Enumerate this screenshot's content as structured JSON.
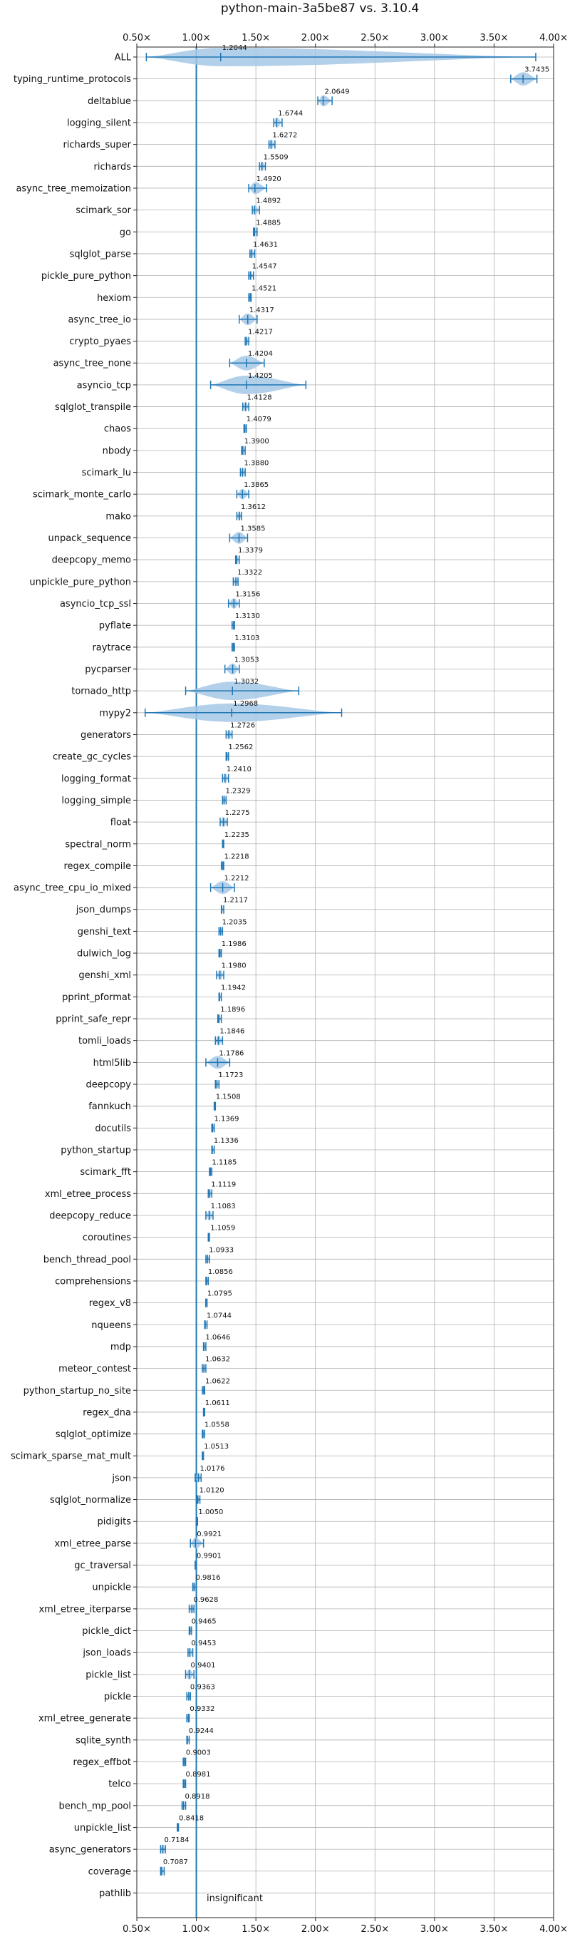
{
  "chart_data": {
    "type": "violin",
    "title": "python-main-3a5be87 vs. 3.10.4",
    "xlabel": "",
    "ylabel": "",
    "xlim": [
      0.5,
      4.0
    ],
    "xticks": [
      0.5,
      1.0,
      1.5,
      2.0,
      2.5,
      3.0,
      3.5,
      4.0
    ],
    "xtick_labels": [
      "0.50×",
      "1.00×",
      "1.50×",
      "2.00×",
      "2.50×",
      "3.00×",
      "3.50×",
      "4.00×"
    ],
    "x_axes": [
      "top",
      "bottom"
    ],
    "grid": true,
    "reference_line": 1.0,
    "color": "#1f77b4",
    "fill_color": "#a6c8e6",
    "annotation": "insignificant",
    "categories": [
      "ALL",
      "typing_runtime_protocols",
      "deltablue",
      "logging_silent",
      "richards_super",
      "richards",
      "async_tree_memoization",
      "scimark_sor",
      "go",
      "sqlglot_parse",
      "pickle_pure_python",
      "hexiom",
      "async_tree_io",
      "crypto_pyaes",
      "async_tree_none",
      "asyncio_tcp",
      "sqlglot_transpile",
      "chaos",
      "nbody",
      "scimark_lu",
      "scimark_monte_carlo",
      "mako",
      "unpack_sequence",
      "deepcopy_memo",
      "unpickle_pure_python",
      "asyncio_tcp_ssl",
      "pyflate",
      "raytrace",
      "pycparser",
      "tornado_http",
      "mypy2",
      "generators",
      "create_gc_cycles",
      "logging_format",
      "logging_simple",
      "float",
      "spectral_norm",
      "regex_compile",
      "async_tree_cpu_io_mixed",
      "json_dumps",
      "genshi_text",
      "dulwich_log",
      "genshi_xml",
      "pprint_pformat",
      "pprint_safe_repr",
      "tomli_loads",
      "html5lib",
      "deepcopy",
      "fannkuch",
      "docutils",
      "python_startup",
      "scimark_fft",
      "xml_etree_process",
      "deepcopy_reduce",
      "coroutines",
      "bench_thread_pool",
      "comprehensions",
      "regex_v8",
      "nqueens",
      "mdp",
      "meteor_contest",
      "python_startup_no_site",
      "regex_dna",
      "sqlglot_optimize",
      "scimark_sparse_mat_mult",
      "json",
      "sqlglot_normalize",
      "pidigits",
      "xml_etree_parse",
      "gc_traversal",
      "unpickle",
      "xml_etree_iterparse",
      "pickle_dict",
      "json_loads",
      "pickle_list",
      "pickle",
      "xml_etree_generate",
      "sqlite_synth",
      "regex_effbot",
      "telco",
      "bench_mp_pool",
      "unpickle_list",
      "async_generators",
      "coverage",
      "pathlib"
    ],
    "medians": [
      1.2044,
      3.7435,
      2.0649,
      1.6744,
      1.6272,
      1.5509,
      1.492,
      1.4892,
      1.4885,
      1.4631,
      1.4547,
      1.4521,
      1.4317,
      1.4217,
      1.4204,
      1.4205,
      1.4128,
      1.4079,
      1.39,
      1.388,
      1.3865,
      1.3612,
      1.3585,
      1.3379,
      1.3322,
      1.3156,
      1.313,
      1.3103,
      1.3053,
      1.3032,
      1.2968,
      1.2726,
      1.2562,
      1.241,
      1.2329,
      1.2275,
      1.2235,
      1.2218,
      1.2212,
      1.2117,
      1.2035,
      1.1986,
      1.198,
      1.1942,
      1.1896,
      1.1846,
      1.1786,
      1.1723,
      1.1508,
      1.1369,
      1.1336,
      1.1185,
      1.1119,
      1.1083,
      1.1059,
      1.0933,
      1.0856,
      1.0795,
      1.0744,
      1.0646,
      1.0632,
      1.0622,
      1.0611,
      1.0558,
      1.0513,
      1.0176,
      1.012,
      1.005,
      0.9921,
      0.9901,
      0.9816,
      0.9628,
      0.9465,
      0.9453,
      0.9401,
      0.9363,
      0.9332,
      0.9244,
      0.9003,
      0.8981,
      0.8918,
      0.8418,
      0.7184,
      0.7087,
      null
    ],
    "value_labels": [
      "1.2044",
      "3.7435",
      "2.0649",
      "1.6744",
      "1.6272",
      "1.5509",
      "1.4920",
      "1.4892",
      "1.4885",
      "1.4631",
      "1.4547",
      "1.4521",
      "1.4317",
      "1.4217",
      "1.4204",
      "1.4205",
      "1.4128",
      "1.4079",
      "1.3900",
      "1.3880",
      "1.3865",
      "1.3612",
      "1.3585",
      "1.3379",
      "1.3322",
      "1.3156",
      "1.3130",
      "1.3103",
      "1.3053",
      "1.3032",
      "1.2968",
      "1.2726",
      "1.2562",
      "1.2410",
      "1.2329",
      "1.2275",
      "1.2235",
      "1.2218",
      "1.2212",
      "1.2117",
      "1.2035",
      "1.1986",
      "1.1980",
      "1.1942",
      "1.1896",
      "1.1846",
      "1.1786",
      "1.1723",
      "1.1508",
      "1.1369",
      "1.1336",
      "1.1185",
      "1.1119",
      "1.1083",
      "1.1059",
      "1.0933",
      "1.0856",
      "1.0795",
      "1.0744",
      "1.0646",
      "1.0632",
      "1.0622",
      "1.0611",
      "1.0558",
      "1.0513",
      "1.0176",
      "1.0120",
      "1.0050",
      "0.9921",
      "0.9901",
      "0.9816",
      "0.9628",
      "0.9465",
      "0.9453",
      "0.9401",
      "0.9363",
      "0.9332",
      "0.9244",
      "0.9003",
      "0.8981",
      "0.8918",
      "0.8418",
      "0.7184",
      "0.7087",
      ""
    ],
    "min": [
      0.58,
      3.64,
      2.02,
      1.65,
      1.61,
      1.53,
      1.44,
      1.47,
      1.48,
      1.45,
      1.44,
      1.44,
      1.36,
      1.41,
      1.28,
      1.12,
      1.39,
      1.4,
      1.38,
      1.37,
      1.34,
      1.34,
      1.28,
      1.33,
      1.31,
      1.27,
      1.3,
      1.3,
      1.24,
      0.91,
      0.57,
      1.25,
      1.25,
      1.22,
      1.22,
      1.2,
      1.22,
      1.21,
      1.12,
      1.21,
      1.19,
      1.19,
      1.17,
      1.19,
      1.18,
      1.16,
      1.08,
      1.16,
      1.15,
      1.13,
      1.13,
      1.11,
      1.1,
      1.08,
      1.1,
      1.08,
      1.08,
      1.08,
      1.07,
      1.06,
      1.05,
      1.05,
      1.06,
      1.05,
      1.05,
      0.99,
      1.01,
      1.0,
      0.95,
      0.99,
      0.97,
      0.94,
      0.94,
      0.93,
      0.91,
      0.92,
      0.92,
      0.92,
      0.89,
      0.89,
      0.88,
      0.84,
      0.7,
      0.7,
      null
    ],
    "max": [
      3.85,
      3.86,
      2.14,
      1.72,
      1.66,
      1.58,
      1.59,
      1.53,
      1.51,
      1.49,
      1.48,
      1.46,
      1.51,
      1.44,
      1.57,
      1.92,
      1.44,
      1.42,
      1.41,
      1.41,
      1.44,
      1.38,
      1.43,
      1.36,
      1.35,
      1.36,
      1.32,
      1.32,
      1.36,
      1.86,
      2.22,
      1.3,
      1.27,
      1.27,
      1.25,
      1.26,
      1.23,
      1.23,
      1.32,
      1.23,
      1.22,
      1.21,
      1.23,
      1.21,
      1.21,
      1.22,
      1.28,
      1.19,
      1.16,
      1.15,
      1.15,
      1.13,
      1.13,
      1.14,
      1.11,
      1.11,
      1.1,
      1.09,
      1.09,
      1.08,
      1.08,
      1.07,
      1.07,
      1.07,
      1.06,
      1.04,
      1.03,
      1.01,
      1.06,
      1.0,
      1.0,
      0.98,
      0.96,
      0.97,
      0.98,
      0.95,
      0.94,
      0.94,
      0.91,
      0.91,
      0.91,
      0.85,
      0.74,
      0.73,
      null
    ]
  }
}
